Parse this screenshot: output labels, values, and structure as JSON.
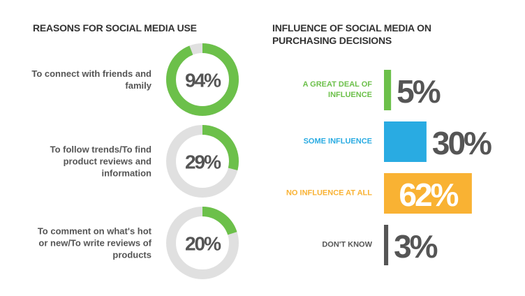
{
  "chart_data": [
    {
      "type": "donut",
      "title": "REASONS FOR SOCIAL MEDIA USE",
      "categories": [
        "To connect with friends and family",
        "To follow trends/To find product reviews and information",
        "To comment on what's hot or new/To write reviews of products"
      ],
      "values": [
        94,
        29,
        20
      ],
      "value_labels": [
        "94%",
        "29%",
        "20%"
      ],
      "color": "#6cc04a",
      "track_color": "#e0e0e0"
    },
    {
      "type": "bar",
      "orientation": "horizontal",
      "title": "INFLUENCE OF SOCIAL MEDIA ON PURCHASING DECISIONS",
      "categories": [
        "A GREAT DEAL OF INFLUENCE",
        "SOME INFLUENCE",
        "NO INFLUENCE AT ALL",
        "DON'T KNOW"
      ],
      "values": [
        5,
        30,
        62,
        3
      ],
      "value_labels": [
        "5%",
        "30%",
        "62%",
        "3%"
      ],
      "colors": [
        "#6cc04a",
        "#29abe2",
        "#f9b233",
        "#555555"
      ]
    }
  ]
}
